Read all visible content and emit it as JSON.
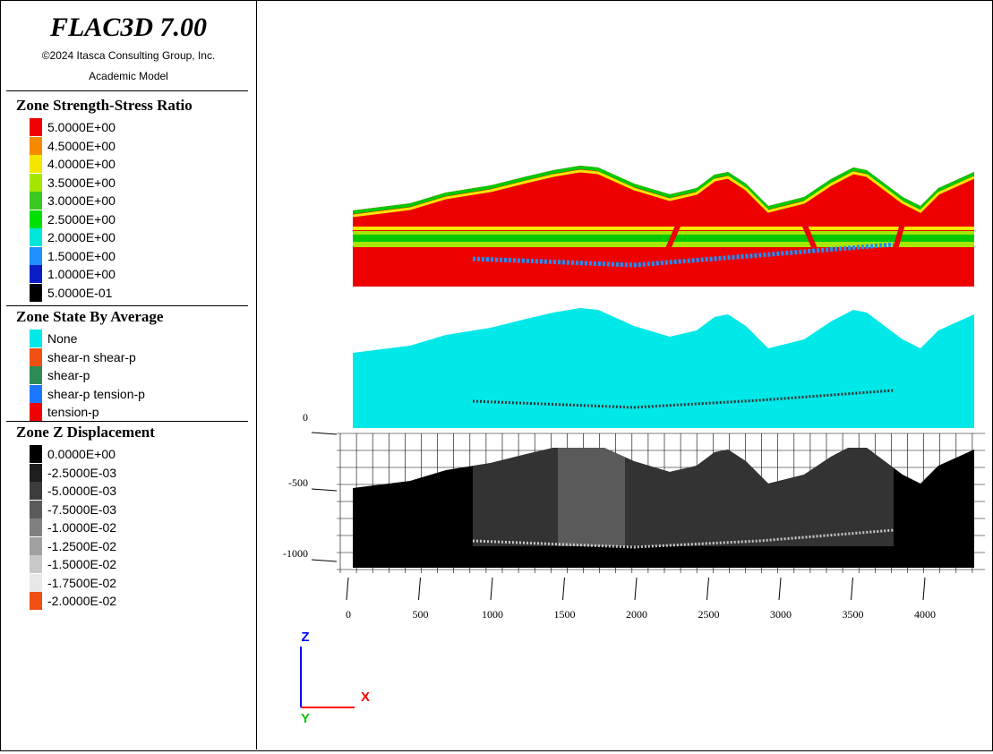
{
  "header": {
    "title": "FLAC3D 7.00",
    "copyright": "©2024 Itasca Consulting Group, Inc.",
    "license": "Academic Model"
  },
  "legends": [
    {
      "title": "Zone Strength-Stress Ratio",
      "items": [
        {
          "label": "5.0000E+00",
          "color": "#ee0000"
        },
        {
          "label": "4.5000E+00",
          "color": "#f58a00"
        },
        {
          "label": "4.0000E+00",
          "color": "#f5e600"
        },
        {
          "label": "3.5000E+00",
          "color": "#a6e600"
        },
        {
          "label": "3.0000E+00",
          "color": "#3dc821"
        },
        {
          "label": "2.5000E+00",
          "color": "#00e000"
        },
        {
          "label": "2.0000E+00",
          "color": "#00e6d8"
        },
        {
          "label": "1.5000E+00",
          "color": "#1e90ff"
        },
        {
          "label": "1.0000E+00",
          "color": "#0a1ec8"
        },
        {
          "label": "5.0000E-01",
          "color": "#000000"
        }
      ]
    },
    {
      "title": "Zone State By Average",
      "items": [
        {
          "label": "None",
          "color": "#00e8e8"
        },
        {
          "label": "shear-n shear-p",
          "color": "#f05014"
        },
        {
          "label": "shear-p",
          "color": "#2e8b57"
        },
        {
          "label": "shear-p tension-p",
          "color": "#1e78ff"
        },
        {
          "label": "tension-p",
          "color": "#ee0000"
        }
      ]
    },
    {
      "title": "Zone Z Displacement",
      "items": [
        {
          "label": "0.0000E+00",
          "color": "#000000"
        },
        {
          "label": "-2.5000E-03",
          "color": "#1e1e1e"
        },
        {
          "label": "-5.0000E-03",
          "color": "#3c3c3c"
        },
        {
          "label": "-7.5000E-03",
          "color": "#5a5a5a"
        },
        {
          "label": "-1.0000E-02",
          "color": "#808080"
        },
        {
          "label": "-1.2500E-02",
          "color": "#a0a0a0"
        },
        {
          "label": "-1.5000E-02",
          "color": "#c8c8c8"
        },
        {
          "label": "-1.7500E-02",
          "color": "#ffffff"
        },
        {
          "label": "-2.0000E-02",
          "color": "#f05014"
        }
      ]
    }
  ],
  "chart_data": {
    "type": "other",
    "x_ticks": [
      "0",
      "500",
      "1000",
      "1500",
      "2000",
      "2500",
      "3000",
      "3500",
      "4000"
    ],
    "y_ticks": [
      "0",
      "-500",
      "-1000"
    ]
  },
  "axes_triad": {
    "z_label": "Z",
    "x_label": "X",
    "y_label": "Y",
    "z_color": "#0000ff",
    "x_color": "#ff0000",
    "y_color": "#00c800"
  }
}
